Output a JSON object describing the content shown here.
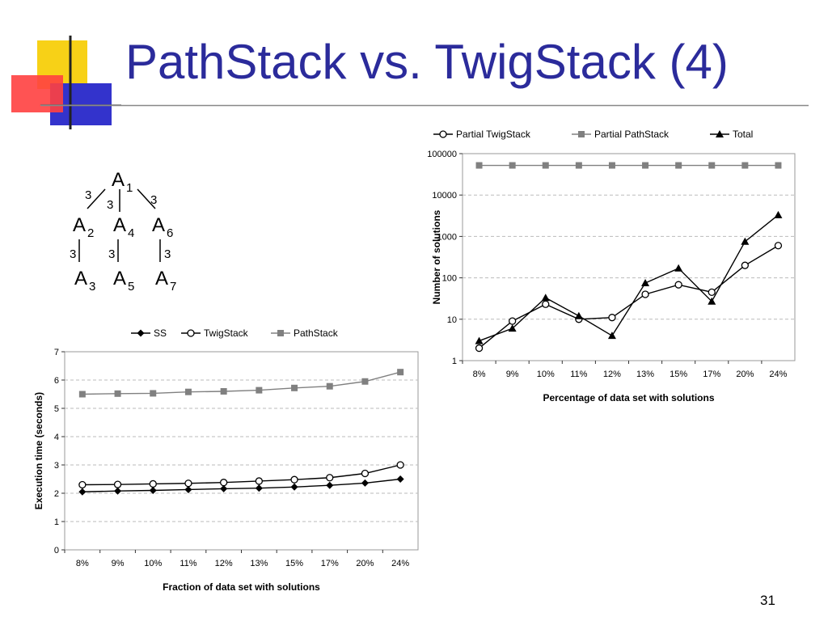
{
  "slide": {
    "title": "PathStack vs. TwigStack (4)",
    "page_number": "31",
    "colors": {
      "title": "#2b2b9b",
      "deco_yellow": "#f7d117",
      "deco_red": "#ff4040",
      "deco_blue": "#3333cc"
    }
  },
  "tree": {
    "nodes": [
      {
        "id": "A1",
        "label": "A",
        "sub": "1"
      },
      {
        "id": "A2",
        "label": "A",
        "sub": "2"
      },
      {
        "id": "A4",
        "label": "A",
        "sub": "4"
      },
      {
        "id": "A6",
        "label": "A",
        "sub": "6"
      },
      {
        "id": "A3",
        "label": "A",
        "sub": "3"
      },
      {
        "id": "A5",
        "label": "A",
        "sub": "5"
      },
      {
        "id": "A7",
        "label": "A",
        "sub": "7"
      }
    ],
    "edges": [
      {
        "from": "A1",
        "to": "A2",
        "weight": "3"
      },
      {
        "from": "A1",
        "to": "A4",
        "weight": "3"
      },
      {
        "from": "A1",
        "to": "A6",
        "weight": "3"
      },
      {
        "from": "A2",
        "to": "A3",
        "weight": "3"
      },
      {
        "from": "A4",
        "to": "A5",
        "weight": "3"
      },
      {
        "from": "A6",
        "to": "A7",
        "weight": "3"
      }
    ]
  },
  "chart_data": [
    {
      "type": "line",
      "categories": [
        "8%",
        "9%",
        "10%",
        "11%",
        "12%",
        "13%",
        "15%",
        "17%",
        "20%",
        "24%"
      ],
      "series": [
        {
          "name": "SS",
          "marker": "diamond",
          "color": "#000000",
          "values": [
            2.05,
            2.08,
            2.1,
            2.13,
            2.16,
            2.18,
            2.22,
            2.28,
            2.36,
            2.5
          ]
        },
        {
          "name": "TwigStack",
          "marker": "circle",
          "color": "#000000",
          "values": [
            2.3,
            2.31,
            2.33,
            2.35,
            2.38,
            2.43,
            2.48,
            2.55,
            2.7,
            3.0
          ]
        },
        {
          "name": "PathStack",
          "marker": "square",
          "color": "#808080",
          "values": [
            5.5,
            5.52,
            5.53,
            5.58,
            5.6,
            5.64,
            5.72,
            5.78,
            5.95,
            6.28
          ]
        }
      ],
      "xlabel": "Fraction of data set with solutions",
      "ylabel": "Execution time (seconds)",
      "ylim": [
        0,
        7
      ],
      "yticks": [
        "0",
        "1",
        "2",
        "3",
        "4",
        "5",
        "6",
        "7"
      ],
      "grid": true,
      "legend": "top"
    },
    {
      "type": "line",
      "log_y": true,
      "categories": [
        "8%",
        "9%",
        "10%",
        "11%",
        "12%",
        "13%",
        "15%",
        "17%",
        "20%",
        "24%"
      ],
      "series": [
        {
          "name": "Partial TwigStack",
          "marker": "circle",
          "color": "#000000",
          "values": [
            2,
            9,
            23,
            10,
            11,
            40,
            68,
            45,
            200,
            600
          ]
        },
        {
          "name": "Partial PathStack",
          "marker": "square",
          "color": "#808080",
          "values": [
            52000,
            52000,
            52000,
            52000,
            52000,
            52000,
            52000,
            52000,
            52000,
            52000
          ]
        },
        {
          "name": "Total",
          "marker": "triangle",
          "color": "#000000",
          "values": [
            3,
            6,
            33,
            12,
            4,
            75,
            170,
            27,
            750,
            3300
          ]
        }
      ],
      "xlabel": "Percentage of data set with solutions",
      "ylabel": "Number of solutions",
      "ylim": [
        1,
        100000
      ],
      "yticks": [
        "1",
        "10",
        "100",
        "1000",
        "10000",
        "100000"
      ],
      "grid": true,
      "legend": "top"
    }
  ]
}
